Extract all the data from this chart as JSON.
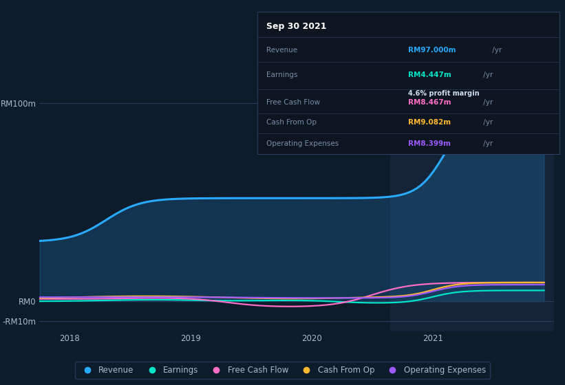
{
  "bg_color": "#0d1b2a",
  "plot_bg_color": "#0d1b2a",
  "text_color": "#aabbcc",
  "revenue_color": "#29aaff",
  "earnings_color": "#00e5c8",
  "fcf_color": "#ff6ec7",
  "cashop_color": "#ffb830",
  "opex_color": "#9b59ff",
  "grid_color": "#2a3f5f",
  "highlight_bg": "#1a2a40",
  "xtick_labels": [
    "2018",
    "2019",
    "2020",
    "2021"
  ],
  "ytick_values": [
    -10,
    0,
    100
  ],
  "ytick_labels": [
    "-RM10m",
    "RM0",
    "RM100m"
  ],
  "info_box": {
    "title": "Sep 30 2021",
    "bg": "#0d1520",
    "border": "#2a3f5f",
    "rows": [
      {
        "label": "Revenue",
        "value": "RM97.000m",
        "value_color": "#29aaff",
        "suffix": " /yr",
        "extra": ""
      },
      {
        "label": "Earnings",
        "value": "RM4.447m",
        "value_color": "#00e5c8",
        "suffix": " /yr",
        "extra": "4.6% profit margin"
      },
      {
        "label": "Free Cash Flow",
        "value": "RM8.467m",
        "value_color": "#ff6ec7",
        "suffix": " /yr",
        "extra": ""
      },
      {
        "label": "Cash From Op",
        "value": "RM9.082m",
        "value_color": "#ffb830",
        "suffix": " /yr",
        "extra": ""
      },
      {
        "label": "Operating Expenses",
        "value": "RM8.399m",
        "value_color": "#9b59ff",
        "suffix": " /yr",
        "extra": ""
      }
    ]
  },
  "legend_items": [
    {
      "label": "Revenue",
      "color": "#29aaff"
    },
    {
      "label": "Earnings",
      "color": "#00e5c8"
    },
    {
      "label": "Free Cash Flow",
      "color": "#ff6ec7"
    },
    {
      "label": "Cash From Op",
      "color": "#ffb830"
    },
    {
      "label": "Operating Expenses",
      "color": "#9b59ff"
    }
  ]
}
